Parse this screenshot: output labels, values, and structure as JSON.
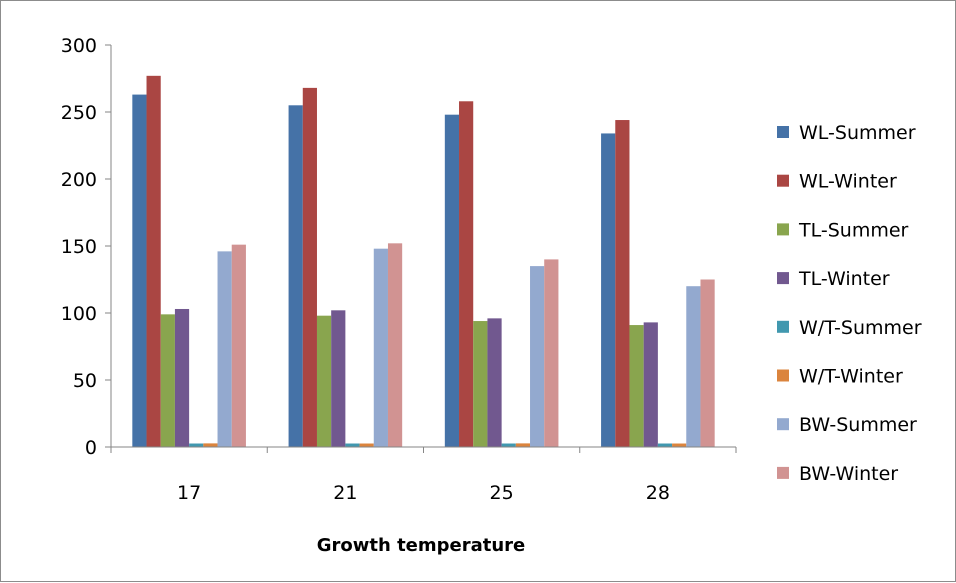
{
  "chart_data": {
    "type": "bar",
    "title": "",
    "xlabel": "Growth temperature",
    "ylabel": "",
    "ylim": [
      0,
      300
    ],
    "yticks": [
      0,
      50,
      100,
      150,
      200,
      250,
      300
    ],
    "categories": [
      "17",
      "21",
      "25",
      "28"
    ],
    "grid": false,
    "legend_position": "right",
    "series": [
      {
        "name": "WL-Summer",
        "color": "#4572A7",
        "values": [
          263,
          255,
          248,
          234
        ]
      },
      {
        "name": "WL-Winter",
        "color": "#AA4643",
        "values": [
          277,
          268,
          258,
          244
        ]
      },
      {
        "name": "TL-Summer",
        "color": "#89A54E",
        "values": [
          99,
          98,
          94,
          91
        ]
      },
      {
        "name": "TL-Winter",
        "color": "#71588F",
        "values": [
          103,
          102,
          96,
          93
        ]
      },
      {
        "name": "W/T-Summer",
        "color": "#4198AF",
        "values": [
          2.6,
          2.6,
          2.6,
          2.6
        ]
      },
      {
        "name": "W/T-Winter",
        "color": "#DB843D",
        "values": [
          2.7,
          2.6,
          2.7,
          2.6
        ]
      },
      {
        "name": "BW-Summer",
        "color": "#93A9CF",
        "values": [
          146,
          148,
          135,
          120
        ]
      },
      {
        "name": "BW-Winter",
        "color": "#D19392",
        "values": [
          151,
          152,
          140,
          125
        ]
      }
    ]
  }
}
